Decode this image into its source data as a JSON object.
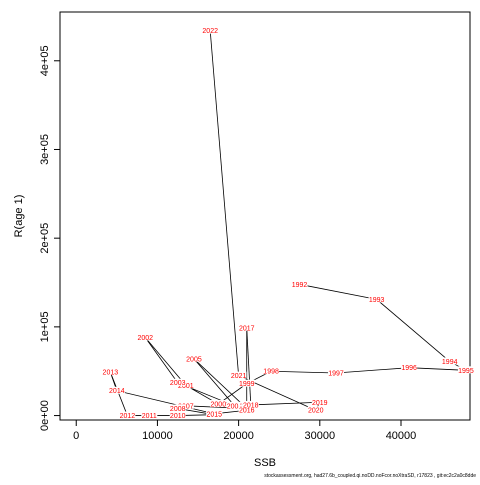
{
  "caption": "stockassessment.org, had27.6b_coupled.qi.noDD.noFcor.noXtraSD, r17823 , git:ec2c2a0c8dde",
  "chart_data": {
    "type": "scatter",
    "title": "",
    "xlabel": "SSB",
    "ylabel": "R(age 1)",
    "xlim": [
      -2000,
      48500
    ],
    "ylim": [
      -5000,
      455000
    ],
    "xticks": [
      0,
      10000,
      20000,
      30000,
      40000
    ],
    "xtick_labels": [
      "0",
      "10000",
      "20000",
      "30000",
      "40000"
    ],
    "yticks": [
      0,
      100000,
      200000,
      300000,
      400000
    ],
    "ytick_labels": [
      "0e+00",
      "1e+05",
      "2e+05",
      "3e+05",
      "4e+05"
    ],
    "connect_points": true,
    "line_color": "#000000",
    "label_color": "#ff0000",
    "points": [
      {
        "year": "1992",
        "x": 27500,
        "y": 148000
      },
      {
        "year": "1993",
        "x": 37000,
        "y": 131000
      },
      {
        "year": "1994",
        "x": 46000,
        "y": 61000
      },
      {
        "year": "1995",
        "x": 48000,
        "y": 51000
      },
      {
        "year": "1996",
        "x": 41000,
        "y": 54000
      },
      {
        "year": "1997",
        "x": 32000,
        "y": 48000
      },
      {
        "year": "1998",
        "x": 24000,
        "y": 50000
      },
      {
        "year": "1999",
        "x": 21000,
        "y": 36000
      },
      {
        "year": "2000",
        "x": 17500,
        "y": 13000
      },
      {
        "year": "2001",
        "x": 13500,
        "y": 34000
      },
      {
        "year": "2002",
        "x": 8500,
        "y": 88000
      },
      {
        "year": "2003",
        "x": 12500,
        "y": 37000
      },
      {
        "year": "2004",
        "x": 19500,
        "y": 11000
      },
      {
        "year": "2005",
        "x": 14500,
        "y": 64000
      },
      {
        "year": "2006",
        "x": 21000,
        "y": 8000
      },
      {
        "year": "2007",
        "x": 13500,
        "y": 11000
      },
      {
        "year": "2008",
        "x": 12500,
        "y": 8000
      },
      {
        "year": "2009",
        "x": 17000,
        "y": 1000
      },
      {
        "year": "2010",
        "x": 12500,
        "y": 0
      },
      {
        "year": "2011",
        "x": 9000,
        "y": 0
      },
      {
        "year": "2012",
        "x": 6300,
        "y": 0
      },
      {
        "year": "2013",
        "x": 4200,
        "y": 49000
      },
      {
        "year": "2014",
        "x": 5000,
        "y": 28000
      },
      {
        "year": "2015",
        "x": 17000,
        "y": 2000
      },
      {
        "year": "2016",
        "x": 21000,
        "y": 6000
      },
      {
        "year": "2017",
        "x": 21000,
        "y": 99000
      },
      {
        "year": "2018",
        "x": 21500,
        "y": 12000
      },
      {
        "year": "2019",
        "x": 30000,
        "y": 15000
      },
      {
        "year": "2020",
        "x": 29500,
        "y": 6000
      },
      {
        "year": "2021",
        "x": 20000,
        "y": 45000
      },
      {
        "year": "2022",
        "x": 16500,
        "y": 434000
      }
    ]
  }
}
